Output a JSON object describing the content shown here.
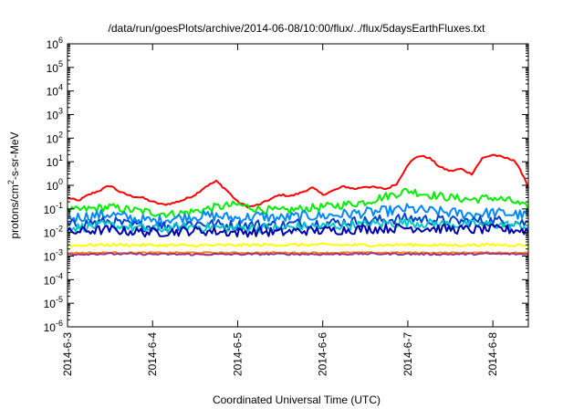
{
  "chart_data": {
    "type": "line",
    "title": "/data/run/goesPlots/archive/2014-06-08/10:00/flux/../flux/5daysEarthFluxes.txt",
    "xlabel": "Coordinated Universal Time (UTC)",
    "ylabel_base": "protons/cm",
    "ylabel_sup": "2",
    "ylabel_rest": "-s-sr-MeV",
    "y_scale": "log",
    "ylim": [
      1e-06,
      1000000.0
    ],
    "y_ticks": [
      {
        "value": 1e-06,
        "base": "10",
        "exp": "-6"
      },
      {
        "value": 1e-05,
        "base": "10",
        "exp": "-5"
      },
      {
        "value": 0.0001,
        "base": "10",
        "exp": "-4"
      },
      {
        "value": 0.001,
        "base": "10",
        "exp": "-3"
      },
      {
        "value": 0.01,
        "base": "10",
        "exp": "-2"
      },
      {
        "value": 0.1,
        "base": "10",
        "exp": "-1"
      },
      {
        "value": 1,
        "base": "10",
        "exp": "0"
      },
      {
        "value": 10,
        "base": "10",
        "exp": "1"
      },
      {
        "value": 100,
        "base": "10",
        "exp": "2"
      },
      {
        "value": 1000,
        "base": "10",
        "exp": "3"
      },
      {
        "value": 10000,
        "base": "10",
        "exp": "4"
      },
      {
        "value": 100000,
        "base": "10",
        "exp": "5"
      },
      {
        "value": 1000000,
        "base": "10",
        "exp": "6"
      }
    ],
    "xlim": [
      "2014-06-03 00:00",
      "2014-06-08 10:00"
    ],
    "x_ticks": [
      "2014-6-3",
      "2014-6-4",
      "2014-6-5",
      "2014-6-6",
      "2014-6-7",
      "2014-6-8"
    ],
    "grid": false,
    "legend": "none",
    "series": [
      {
        "color": "#ff0000",
        "x": [
          "2014-06-03 00:00",
          "2014-06-03 03:00",
          "2014-06-03 06:00",
          "2014-06-03 09:00",
          "2014-06-03 12:00",
          "2014-06-03 15:00",
          "2014-06-03 18:00",
          "2014-06-03 21:00",
          "2014-06-04 00:00",
          "2014-06-04 03:00",
          "2014-06-04 06:00",
          "2014-06-04 09:00",
          "2014-06-04 12:00",
          "2014-06-04 15:00",
          "2014-06-04 18:00",
          "2014-06-04 21:00",
          "2014-06-05 00:00",
          "2014-06-05 03:00",
          "2014-06-05 06:00",
          "2014-06-05 09:00",
          "2014-06-05 12:00",
          "2014-06-05 15:00",
          "2014-06-05 18:00",
          "2014-06-05 21:00",
          "2014-06-06 00:00",
          "2014-06-06 03:00",
          "2014-06-06 06:00",
          "2014-06-06 09:00",
          "2014-06-06 12:00",
          "2014-06-06 15:00",
          "2014-06-06 18:00",
          "2014-06-06 21:00",
          "2014-06-07 00:00",
          "2014-06-07 03:00",
          "2014-06-07 06:00",
          "2014-06-07 09:00",
          "2014-06-07 12:00",
          "2014-06-07 15:00",
          "2014-06-07 18:00",
          "2014-06-07 21:00",
          "2014-06-08 00:00",
          "2014-06-08 03:00",
          "2014-06-08 06:00",
          "2014-06-08 09:00",
          "2014-06-08 10:00"
        ],
        "y": [
          0.3,
          0.22,
          0.4,
          0.6,
          1.0,
          0.5,
          0.35,
          0.3,
          0.2,
          0.15,
          0.18,
          0.25,
          0.4,
          0.9,
          1.5,
          0.6,
          0.2,
          0.12,
          0.15,
          0.25,
          0.4,
          0.35,
          0.5,
          0.8,
          0.4,
          0.6,
          0.9,
          0.7,
          0.9,
          0.8,
          0.7,
          1.2,
          8,
          18,
          15,
          6,
          4,
          5,
          3,
          14,
          20,
          15,
          12,
          2,
          0.8
        ]
      },
      {
        "color": "#00ee00",
        "x": [
          "2014-06-03 00:00",
          "2014-06-03 06:00",
          "2014-06-03 12:00",
          "2014-06-03 18:00",
          "2014-06-04 00:00",
          "2014-06-04 06:00",
          "2014-06-04 12:00",
          "2014-06-04 18:00",
          "2014-06-05 00:00",
          "2014-06-05 06:00",
          "2014-06-05 12:00",
          "2014-06-05 18:00",
          "2014-06-06 00:00",
          "2014-06-06 06:00",
          "2014-06-06 12:00",
          "2014-06-06 18:00",
          "2014-06-07 00:00",
          "2014-06-07 06:00",
          "2014-06-07 12:00",
          "2014-06-07 18:00",
          "2014-06-08 00:00",
          "2014-06-08 06:00",
          "2014-06-08 10:00"
        ],
        "y": [
          0.08,
          0.1,
          0.12,
          0.09,
          0.07,
          0.06,
          0.08,
          0.12,
          0.15,
          0.1,
          0.08,
          0.1,
          0.12,
          0.15,
          0.2,
          0.35,
          0.6,
          0.4,
          0.3,
          0.25,
          0.3,
          0.2,
          0.1
        ]
      },
      {
        "color": "#0088ff",
        "x": [
          "2014-06-03 00:00",
          "2014-06-03 06:00",
          "2014-06-03 12:00",
          "2014-06-03 18:00",
          "2014-06-04 00:00",
          "2014-06-04 06:00",
          "2014-06-04 12:00",
          "2014-06-04 18:00",
          "2014-06-05 00:00",
          "2014-06-05 06:00",
          "2014-06-05 12:00",
          "2014-06-05 18:00",
          "2014-06-06 00:00",
          "2014-06-06 06:00",
          "2014-06-06 12:00",
          "2014-06-06 18:00",
          "2014-06-07 00:00",
          "2014-06-07 06:00",
          "2014-06-07 12:00",
          "2014-06-07 18:00",
          "2014-06-08 00:00",
          "2014-06-08 06:00",
          "2014-06-08 10:00"
        ],
        "y": [
          0.04,
          0.05,
          0.06,
          0.04,
          0.03,
          0.04,
          0.05,
          0.05,
          0.04,
          0.05,
          0.04,
          0.05,
          0.05,
          0.06,
          0.07,
          0.08,
          0.1,
          0.08,
          0.07,
          0.06,
          0.07,
          0.06,
          0.05
        ]
      },
      {
        "color": "#0044cc",
        "x": [
          "2014-06-03 00:00",
          "2014-06-03 06:00",
          "2014-06-03 12:00",
          "2014-06-03 18:00",
          "2014-06-04 00:00",
          "2014-06-04 06:00",
          "2014-06-04 12:00",
          "2014-06-04 18:00",
          "2014-06-05 00:00",
          "2014-06-05 06:00",
          "2014-06-05 12:00",
          "2014-06-05 18:00",
          "2014-06-06 00:00",
          "2014-06-06 06:00",
          "2014-06-06 12:00",
          "2014-06-06 18:00",
          "2014-06-07 00:00",
          "2014-06-07 06:00",
          "2014-06-07 12:00",
          "2014-06-07 18:00",
          "2014-06-08 00:00",
          "2014-06-08 06:00",
          "2014-06-08 10:00"
        ],
        "y": [
          0.02,
          0.025,
          0.03,
          0.02,
          0.018,
          0.02,
          0.025,
          0.022,
          0.02,
          0.022,
          0.02,
          0.025,
          0.025,
          0.028,
          0.03,
          0.035,
          0.04,
          0.035,
          0.03,
          0.03,
          0.032,
          0.028,
          0.025
        ]
      },
      {
        "color": "#00c8c8",
        "x": [
          "2014-06-03 00:00",
          "2014-06-03 06:00",
          "2014-06-03 12:00",
          "2014-06-03 18:00",
          "2014-06-04 00:00",
          "2014-06-04 06:00",
          "2014-06-04 12:00",
          "2014-06-04 18:00",
          "2014-06-05 00:00",
          "2014-06-05 06:00",
          "2014-06-05 12:00",
          "2014-06-05 18:00",
          "2014-06-06 00:00",
          "2014-06-06 06:00",
          "2014-06-06 12:00",
          "2014-06-06 18:00",
          "2014-06-07 00:00",
          "2014-06-07 06:00",
          "2014-06-07 12:00",
          "2014-06-07 18:00",
          "2014-06-08 00:00",
          "2014-06-08 06:00",
          "2014-06-08 10:00"
        ],
        "y": [
          0.015,
          0.018,
          0.02,
          0.016,
          0.014,
          0.015,
          0.018,
          0.016,
          0.015,
          0.016,
          0.015,
          0.018,
          0.018,
          0.02,
          0.022,
          0.024,
          0.026,
          0.024,
          0.022,
          0.021,
          0.022,
          0.02,
          0.018
        ]
      },
      {
        "color": "#0000aa",
        "x": [
          "2014-06-03 00:00",
          "2014-06-03 06:00",
          "2014-06-03 12:00",
          "2014-06-03 18:00",
          "2014-06-04 00:00",
          "2014-06-04 06:00",
          "2014-06-04 12:00",
          "2014-06-04 18:00",
          "2014-06-05 00:00",
          "2014-06-05 06:00",
          "2014-06-05 12:00",
          "2014-06-05 18:00",
          "2014-06-06 00:00",
          "2014-06-06 06:00",
          "2014-06-06 12:00",
          "2014-06-06 18:00",
          "2014-06-07 00:00",
          "2014-06-07 06:00",
          "2014-06-07 12:00",
          "2014-06-07 18:00",
          "2014-06-08 00:00",
          "2014-06-08 06:00",
          "2014-06-08 10:00"
        ],
        "y": [
          0.01,
          0.012,
          0.013,
          0.011,
          0.01,
          0.011,
          0.012,
          0.011,
          0.01,
          0.011,
          0.01,
          0.012,
          0.012,
          0.013,
          0.014,
          0.015,
          0.016,
          0.015,
          0.014,
          0.013,
          0.014,
          0.013,
          0.012
        ]
      },
      {
        "color": "#ffff00",
        "x": [
          "2014-06-03 00:00",
          "2014-06-03 12:00",
          "2014-06-04 00:00",
          "2014-06-04 12:00",
          "2014-06-05 00:00",
          "2014-06-05 12:00",
          "2014-06-06 00:00",
          "2014-06-06 12:00",
          "2014-06-07 00:00",
          "2014-06-07 12:00",
          "2014-06-08 00:00",
          "2014-06-08 10:00"
        ],
        "y": [
          0.0028,
          0.003,
          0.0029,
          0.0028,
          0.0029,
          0.003,
          0.003,
          0.0029,
          0.003,
          0.0029,
          0.003,
          0.0029
        ]
      },
      {
        "color": "#ff8800",
        "x": [
          "2014-06-03 00:00",
          "2014-06-03 12:00",
          "2014-06-04 00:00",
          "2014-06-04 12:00",
          "2014-06-05 00:00",
          "2014-06-05 12:00",
          "2014-06-06 00:00",
          "2014-06-06 12:00",
          "2014-06-07 00:00",
          "2014-06-07 12:00",
          "2014-06-08 00:00",
          "2014-06-08 10:00"
        ],
        "y": [
          0.00135,
          0.0014,
          0.00138,
          0.0014,
          0.00137,
          0.0014,
          0.00138,
          0.0014,
          0.0014,
          0.00138,
          0.0014,
          0.00136
        ]
      },
      {
        "color": "#993399",
        "x": [
          "2014-06-03 00:00",
          "2014-06-03 12:00",
          "2014-06-04 00:00",
          "2014-06-04 12:00",
          "2014-06-05 00:00",
          "2014-06-05 12:00",
          "2014-06-06 00:00",
          "2014-06-06 12:00",
          "2014-06-07 00:00",
          "2014-06-07 12:00",
          "2014-06-08 00:00",
          "2014-06-08 10:00"
        ],
        "y": [
          0.0012,
          0.00125,
          0.0012,
          0.00118,
          0.0012,
          0.00122,
          0.0012,
          0.00125,
          0.00122,
          0.0012,
          0.00125,
          0.0012
        ]
      }
    ]
  }
}
